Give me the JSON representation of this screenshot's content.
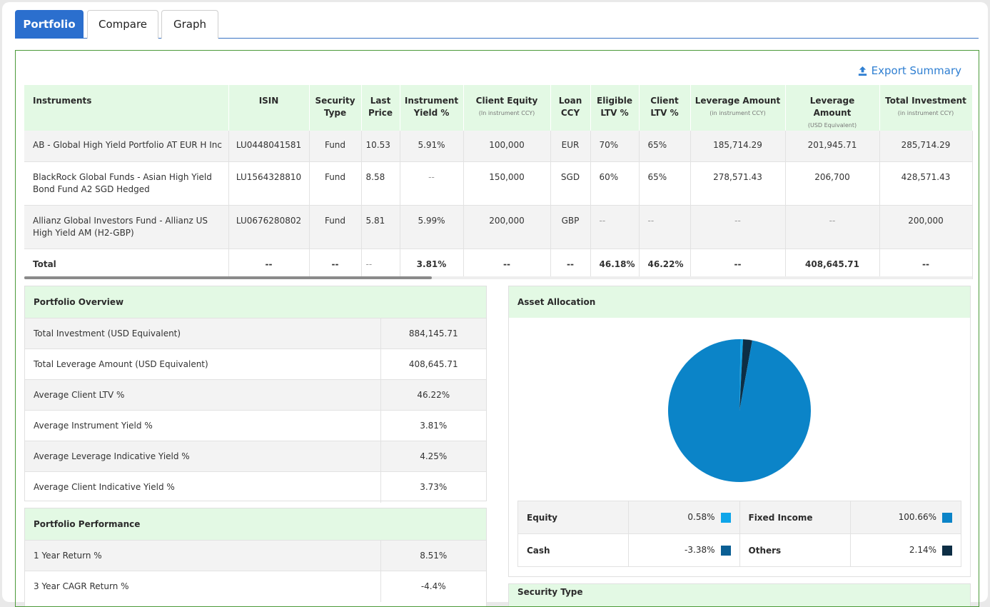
{
  "tabs": [
    {
      "label": "Portfolio",
      "active": true
    },
    {
      "label": "Compare",
      "active": false
    },
    {
      "label": "Graph",
      "active": false
    }
  ],
  "export_label": "Export Summary",
  "instruments_table": {
    "headers": [
      {
        "label": "Instruments",
        "sub": ""
      },
      {
        "label": "ISIN",
        "sub": ""
      },
      {
        "label": "Security Type",
        "sub": ""
      },
      {
        "label": "Last Price",
        "sub": ""
      },
      {
        "label": "Instrument Yield %",
        "sub": ""
      },
      {
        "label": "Client Equity",
        "sub": "(In instrument CCY)"
      },
      {
        "label": "Loan CCY",
        "sub": ""
      },
      {
        "label": "Eligible LTV %",
        "sub": ""
      },
      {
        "label": "Client LTV %",
        "sub": ""
      },
      {
        "label": "Leverage Amount",
        "sub": "(in instrument CCY)"
      },
      {
        "label": "Leverage Amount",
        "sub": "(USD Equivalent)"
      },
      {
        "label": "Total Investment",
        "sub": "(in instrument CCY)"
      }
    ],
    "rows": [
      [
        "AB - Global High Yield Portfolio AT EUR H Inc",
        "LU0448041581",
        "Fund",
        "10.53",
        "5.91%",
        "100,000",
        "EUR",
        "70%",
        "65%",
        "185,714.29",
        "201,945.71",
        "285,714.29"
      ],
      [
        "BlackRock Global Funds - Asian High Yield Bond Fund A2 SGD Hedged",
        "LU1564328810",
        "Fund",
        "8.58",
        "--",
        "150,000",
        "SGD",
        "60%",
        "65%",
        "278,571.43",
        "206,700",
        "428,571.43"
      ],
      [
        "Allianz Global Investors Fund - Allianz US High Yield AM (H2-GBP)",
        "LU0676280802",
        "Fund",
        "5.81",
        "5.99%",
        "200,000",
        "GBP",
        "--",
        "--",
        "--",
        "--",
        "200,000"
      ]
    ],
    "total": [
      "Total",
      "--",
      "--",
      "--",
      "3.81%",
      "--",
      "--",
      "46.18%",
      "46.22%",
      "--",
      "408,645.71",
      "--"
    ]
  },
  "portfolio_overview": {
    "title": "Portfolio Overview",
    "items": [
      {
        "label": "Total Investment (USD Equivalent)",
        "value": "884,145.71"
      },
      {
        "label": "Total Leverage Amount (USD Equivalent)",
        "value": "408,645.71"
      },
      {
        "label": "Average Client LTV %",
        "value": "46.22%"
      },
      {
        "label": "Average Instrument Yield %",
        "value": "3.81%"
      },
      {
        "label": "Average Leverage Indicative Yield %",
        "value": "4.25%"
      },
      {
        "label": "Average Client Indicative Yield %",
        "value": "3.73%"
      }
    ]
  },
  "portfolio_performance": {
    "title": "Portfolio Performance",
    "items": [
      {
        "label": "1 Year Return %",
        "value": "8.51%",
        "tone": "pos"
      },
      {
        "label": "3 Year CAGR Return %",
        "value": "-4.4%",
        "tone": "neg"
      }
    ]
  },
  "asset_allocation": {
    "title": "Asset Allocation",
    "legend": [
      {
        "label": "Equity",
        "value": "0.58%",
        "color": "#0ea5e9"
      },
      {
        "label": "Fixed Income",
        "value": "100.66%",
        "color": "#0b84c8"
      },
      {
        "label": "Cash",
        "value": "-3.38%",
        "color": "#0a5f94"
      },
      {
        "label": "Others",
        "value": "2.14%",
        "color": "#0d2e45"
      }
    ]
  },
  "chart_data": {
    "type": "pie",
    "categories": [
      "Equity",
      "Fixed Income",
      "Cash",
      "Others"
    ],
    "values": [
      0.58,
      100.66,
      -3.38,
      2.14
    ],
    "colors": [
      "#0ea5e9",
      "#0b84c8",
      "#0a5f94",
      "#0d2e45"
    ]
  },
  "next_card_title": "Security Type"
}
